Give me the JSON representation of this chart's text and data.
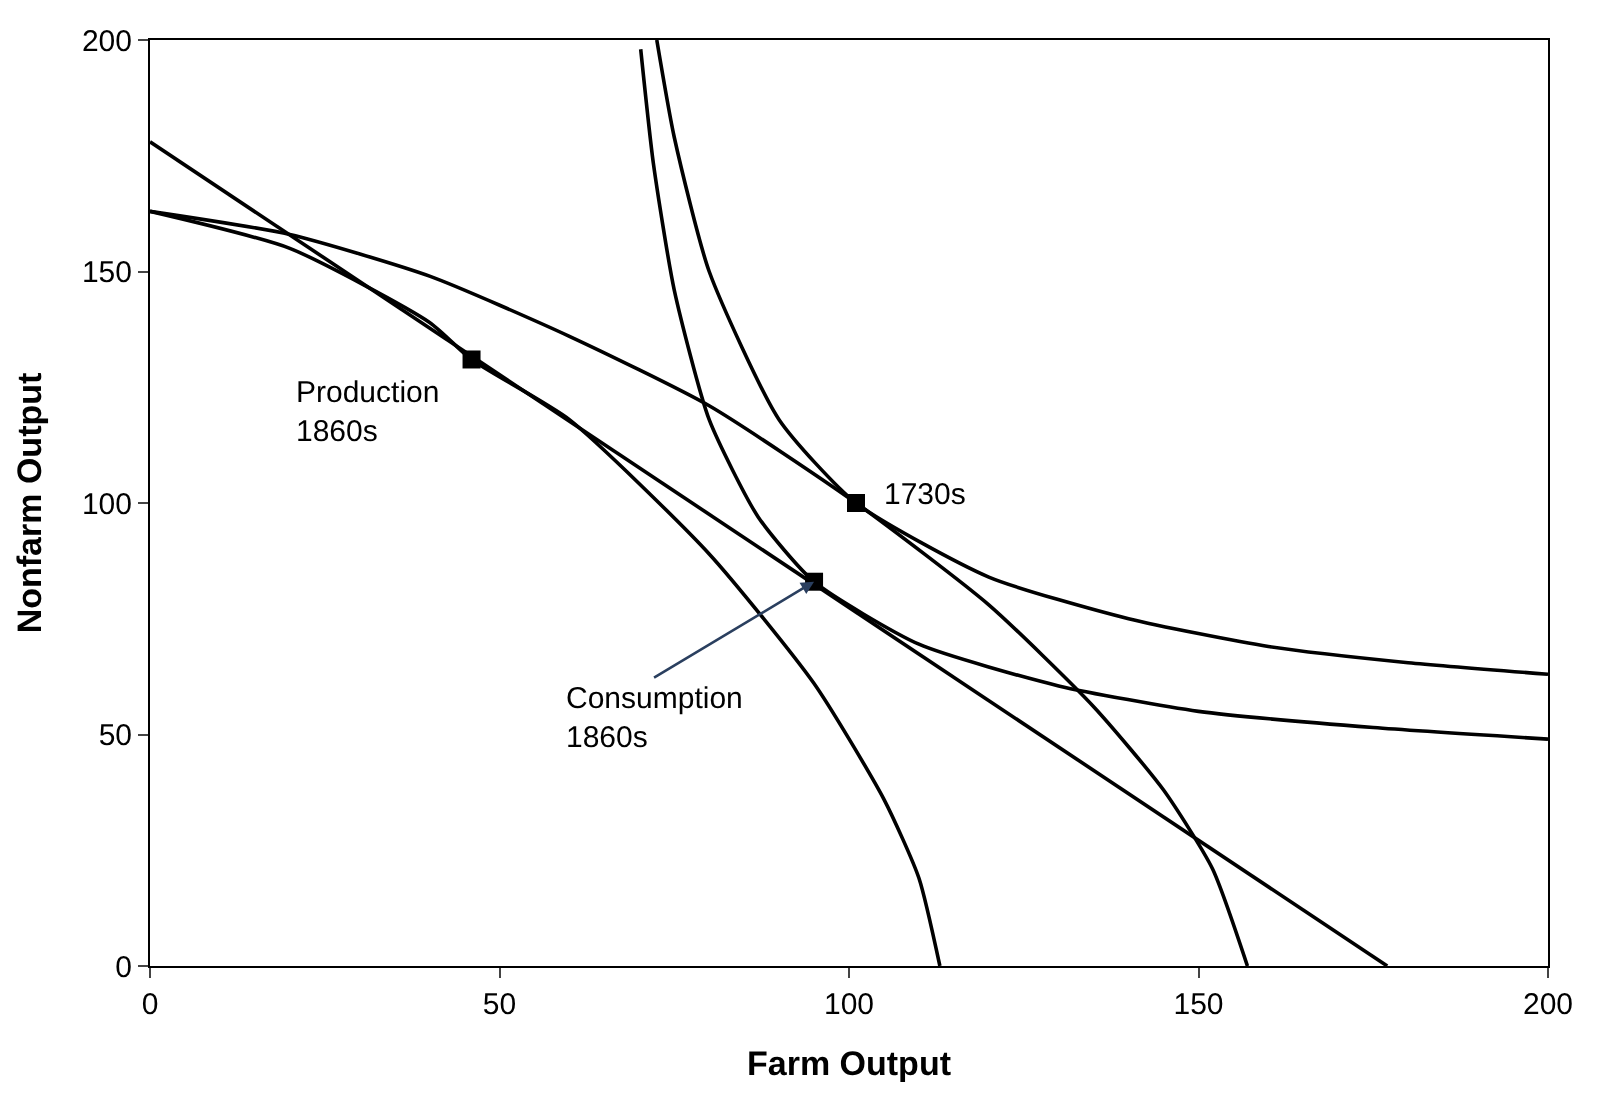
{
  "chart_data": {
    "type": "line",
    "xlabel": "Farm Output",
    "ylabel": "Nonfarm Output",
    "xlim": [
      0,
      200
    ],
    "ylim": [
      0,
      200
    ],
    "xticks": [
      0,
      50,
      100,
      150,
      200
    ],
    "yticks": [
      0,
      50,
      100,
      150,
      200
    ],
    "line_style": "solid",
    "marker": "none",
    "series": [
      {
        "color": "#000000",
        "x": [
          0,
          20,
          40,
          46,
          60,
          80,
          95,
          105,
          110,
          113
        ],
        "values": [
          163,
          155,
          139,
          131,
          118,
          89,
          61,
          36,
          19,
          0
        ]
      },
      {
        "color": "#000000",
        "x": [
          0,
          20,
          40,
          60,
          80,
          101,
          120,
          135,
          145,
          152,
          157
        ],
        "values": [
          163,
          158,
          149,
          136,
          121,
          100,
          78,
          56,
          38,
          21,
          0
        ]
      },
      {
        "color": "#000000",
        "x": [
          0,
          177
        ],
        "values": [
          178,
          0
        ]
      },
      {
        "color": "#000000",
        "x": [
          72.5,
          75,
          80,
          90,
          101,
          120,
          140,
          160,
          180,
          200
        ],
        "values": [
          200,
          179,
          150,
          118,
          100,
          84,
          75,
          69,
          65.5,
          63
        ]
      },
      {
        "color": "#000000",
        "x": [
          70.2,
          72,
          75,
          80,
          87,
          95,
          110,
          130,
          150,
          175,
          200
        ],
        "values": [
          198,
          173.5,
          146,
          118,
          97,
          83,
          69.5,
          60.5,
          55,
          51.5,
          49
        ]
      },
      {
        "type": "scatter",
        "marker": "square",
        "color": "#000000",
        "x": [
          46,
          95,
          101
        ],
        "values": [
          131,
          83,
          100
        ]
      }
    ],
    "annotations": [
      {
        "text": "Production\n1860s",
        "x": 46,
        "y": 131
      },
      {
        "text": "Consumption\n1860s",
        "x": 95,
        "y": 83
      },
      {
        "text": "1730s",
        "x": 101,
        "y": 100
      }
    ]
  }
}
